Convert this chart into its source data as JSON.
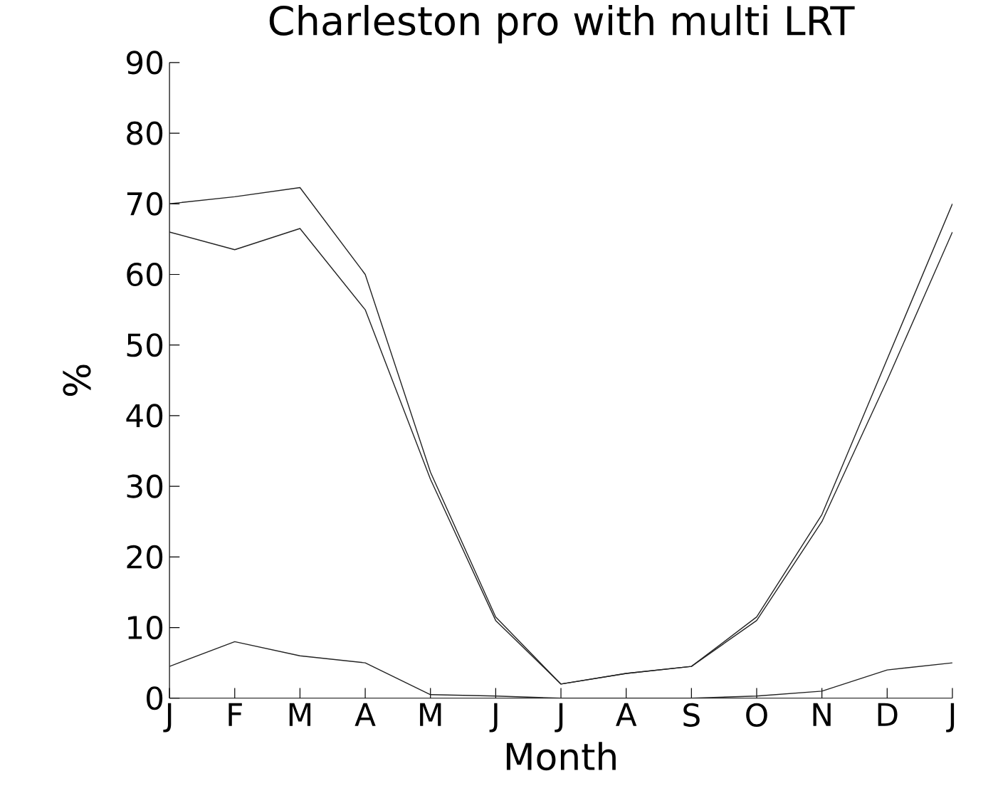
{
  "chart_data": {
    "type": "line",
    "title": "Charleston  pro with multi LRT",
    "xlabel": "Month",
    "ylabel": "%",
    "categories": [
      "J",
      "F",
      "M",
      "A",
      "M",
      "J",
      "J",
      "A",
      "S",
      "O",
      "N",
      "D",
      "J"
    ],
    "series": [
      {
        "color": "#222222",
        "values": [
          70,
          71,
          72.3,
          60,
          32,
          11.5,
          2,
          3.5,
          4.5,
          11.5,
          26,
          48,
          70
        ]
      },
      {
        "color": "#222222",
        "values": [
          66,
          63.5,
          66.5,
          55,
          31,
          11,
          2,
          3.5,
          4.5,
          11,
          25,
          45,
          66
        ]
      },
      {
        "color": "#222222",
        "values": [
          4.5,
          8,
          6,
          5,
          0.5,
          0.3,
          0,
          0,
          0,
          0.3,
          1,
          4,
          5
        ]
      }
    ],
    "ylim": [
      0,
      90
    ],
    "yticks": [
      0,
      10,
      20,
      30,
      40,
      50,
      60,
      70,
      80,
      90
    ],
    "grid": false,
    "legend": false,
    "marker": "none",
    "line_style": "solid"
  }
}
